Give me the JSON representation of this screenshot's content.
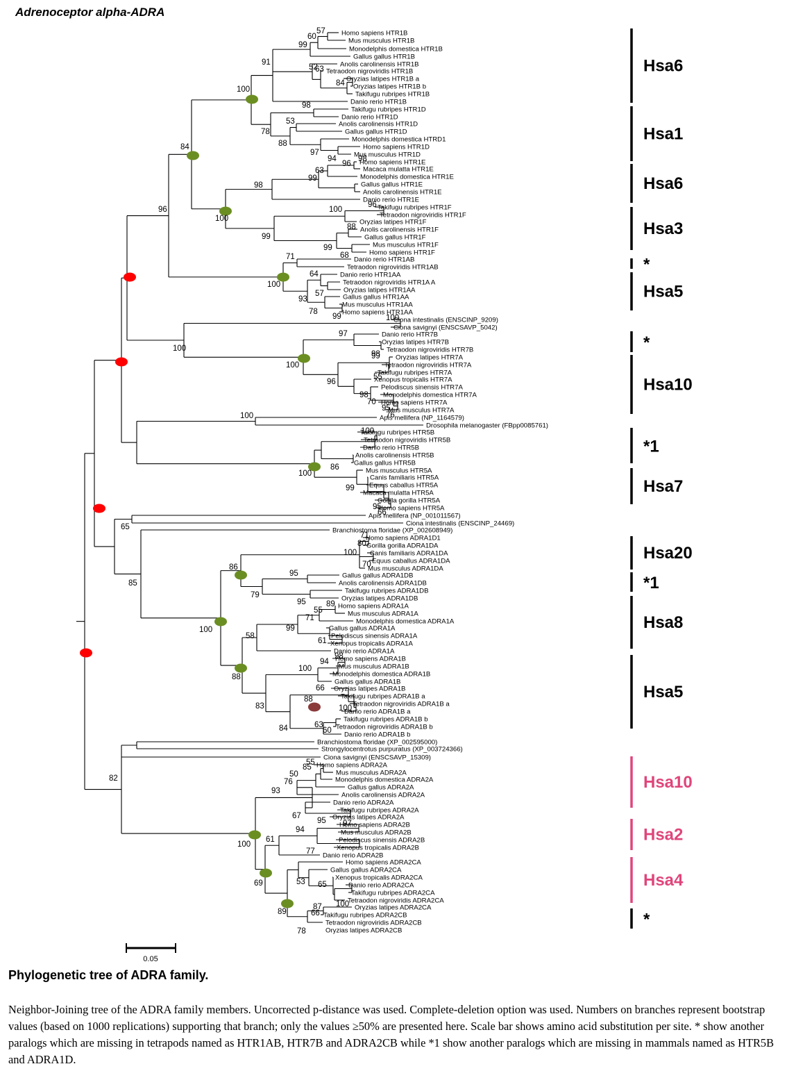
{
  "figure_title": "Adrenoceptor alpha-ADRA",
  "caption": {
    "title": "Phylogenetic tree of  ADRA family.",
    "body": "Neighbor-Joining tree of the  ADRA family members. Uncorrected p-distance was used. Complete-deletion option was used. Numbers on branches represent bootstrap values (based on 1000 replications) supporting that branch; only the values ≥50% are presented here. Scale bar shows amino acid substitution per site. * show another paralogs which are missing in tetrapods named as HTR1AB, HTR7B and ADRA2CB while *1 show another paralogs which are missing in mammals named as HTR5B and ADRA1D."
  },
  "scale_bar": {
    "label": "0.05",
    "value": 0.05
  },
  "colors": {
    "line": "#000000",
    "node_red": "#ff0000",
    "node_green": "#6b8e23",
    "node_brown": "#8b3a3a",
    "group_pink": "#e0457b",
    "group_black": "#000000"
  },
  "tips": [
    "Homo sapiens HTR1B",
    "Mus musculus HTR1B",
    "Monodelphis domestica HTR1B",
    "Gallus gallus HTR1B",
    "Anolis carolinensis HTR1B",
    "Tetraodon nigroviridis HTR1B",
    "Oryzias latipes HTR1B a",
    "Oryzias latipes HTR1B b",
    "Takifugu rubripes HTR1B",
    "Danio rerio HTR1B",
    "Takifugu rubripes HTR1D",
    "Danio rerio HTR1D",
    "Anolis carolinensis HTR1D",
    "Gallus gallus HTR1D",
    "Monodelphis domestica HTRD1",
    "Homo sapiens HTR1D",
    "Mus musculus HTR1D",
    "Homo sapiens HTR1E",
    "Macaca mulatta HTR1E",
    "Monodelphis domestica HTR1E",
    "Gallus gallus HTR1E",
    "Anolis carolinensis HTR1E",
    "Danio rerio HTR1E",
    "Takifugu rubripes HTR1F",
    "Tetraodon nigroviridis HTR1F",
    "Oryzias latipes HTR1F",
    "Anolis carolinensis HTR1F",
    "Gallus gallus HTR1F",
    "Mus musculus HTR1F",
    "Homo sapiens HTR1F",
    "Danio rerio HTR1AB",
    "Tetraodon nigroviridis HTR1AB",
    "Danio rerio HTR1AA",
    "Tetraodon nigroviridis HTR1A A",
    "Oryzias latipes HTR1AA",
    "Gallus gallus HTR1AA",
    "Mus musculus HTR1AA",
    "Homo sapiens HTR1AA",
    "Ciona intestinalis (ENSCINP_9209)",
    "Ciona savignyi (ENSCSAVP_5042)",
    "Danio rerio HTR7B",
    "Oryzias latipes HTR7B",
    "Tetraodon nigroviridis HTR7B",
    "Oryzias latipes HTR7A",
    "Tetraodon nigroviridis HTR7A",
    "Takifugu rubripes HTR7A",
    "Xenopus tropicalis HTR7A",
    "Pelodiscus sinensis HTR7A",
    "Monodelphis domestica HTR7A",
    "Homo sapiens HTR7A",
    "Mus musculus HTR7A",
    "Apis mellifera (NP_1164579)",
    "Drosophila melanogaster (FBpp0085761)",
    "Takifugu rubripes HTR5B",
    "Tetraodon nigroviridis HTR5B",
    "Danio rerio HTR5B",
    "Anolis carolinensis HTR5B",
    "Gallus gallus HTR5B",
    "Mus musculus HTR5A",
    "Canis familiaris HTR5A",
    "Equus caballus HTR5A",
    "Macaca mulatta HTR5A",
    "Gorilla gorilla HTR5A",
    "Homo sapiens HTR5A",
    "Apis mellifera (NP_001011567)",
    "Ciona intestinalis (ENSCINP_24469)",
    "Branchiostoma floridae (XP_002608949)",
    "Homo sapiens ADRA1D1",
    "Gorilla gorilla ADRA1DA",
    "Canis familiaris ADRA1DA",
    "Equus caballus ADRA1DA",
    "Mus musculus ADRA1DA",
    "Gallus gallus ADRA1DB",
    "Anolis carolinensis ADRA1DB",
    "Takifugu rubripes ADRA1DB",
    "Oryzias latipes ADRA1DB",
    "Homo sapiens ADRA1A",
    "Mus musculus ADRA1A",
    "Monodelphis domestica ADRA1A",
    "Gallus gallus ADRA1A",
    "Pelodiscus sinensis ADRA1A",
    "Xenopus tropicalis ADRA1A",
    "Danio rerio ADRA1A",
    "Homo sapiens ADRA1B",
    "Mus musculus ADRA1B",
    "Monodelphis domestica ADRA1B",
    "Gallus gallus ADRA1B",
    "Oryzias latipes ADRA1B",
    "Takifugu rubripes ADRA1B a",
    "Tetraodon nigroviridis ADRA1B a",
    "Danio rerio ADRA1B a",
    "Takifugu rubripes ADRA1B b",
    "Tetraodon nigroviridis ADRA1B b",
    "Danio rerio ADRA1B b",
    "Branchiostoma floridae (XP_002595000)",
    "Strongylocentrotus purpuratus (XP_003724366)",
    "Ciona savignyi (ENSCSAVP_15309)",
    "Homo sapiens ADRA2A",
    "Mus musculus ADRA2A",
    "Monodelphis domestica ADRA2A",
    "Gallus gallus ADRA2A",
    "Anolis carolinensis ADRA2A",
    "Danio rerio ADRA2A",
    "Takifugu rubripes ADRA2A",
    "Oryzias latipes ADRA2A",
    "Homo sapiens ADRA2B",
    "Mus musculus ADRA2B",
    "Pelodiscus sinensis ADRA2B",
    "Xenopus tropicalis ADRA2B",
    "Danio rerio ADRA2B",
    "Homo sapiens ADRA2CA",
    "Gallus gallus ADRA2CA",
    "Xenopus tropicalis ADRA2CA",
    "Danio rerio ADRA2CA",
    "Takifugu rubripes ADRA2CA",
    "Tetraodon nigroviridis ADRA2CA",
    "Oryzias latipes ADRA2CA",
    "Takifugu rubripes ADRA2CB",
    "Tetraodon nigroviridis ADRA2CB",
    "Oryzias latipes ADRA2CB"
  ],
  "bootstrap": [
    "57",
    "60",
    "99",
    "91",
    "52",
    "63",
    "84",
    "100",
    "98",
    "53",
    "78",
    "88",
    "97",
    "94",
    "84",
    "96",
    "98",
    "63",
    "99",
    "96",
    "98",
    "100",
    "100",
    "88",
    "99",
    "99",
    "96",
    "71",
    "68",
    "64",
    "100",
    "93",
    "57",
    "78",
    "99",
    "100",
    "100",
    "97",
    "99",
    "98",
    "100",
    "55",
    "96",
    "98",
    "70",
    "95",
    "76",
    "100",
    "100",
    "86",
    "100",
    "99",
    "95",
    "66",
    "65",
    "85",
    "71",
    "80",
    "100",
    "70",
    "86",
    "95",
    "79",
    "95",
    "89",
    "55",
    "71",
    "99",
    "61",
    "58",
    "100",
    "98",
    "94",
    "100",
    "88",
    "66",
    "88",
    "100",
    "63",
    "60",
    "83",
    "84",
    "82",
    "55",
    "85",
    "50",
    "76",
    "93",
    "67",
    "95",
    "97",
    "94",
    "61",
    "77",
    "100",
    "53",
    "65",
    "69",
    "87",
    "100",
    "66",
    "89",
    "78"
  ],
  "groups": [
    {
      "label": "Hsa6",
      "color": "black"
    },
    {
      "label": "Hsa1",
      "color": "black"
    },
    {
      "label": "Hsa6",
      "color": "black"
    },
    {
      "label": "Hsa3",
      "color": "black"
    },
    {
      "label": "*",
      "color": "black"
    },
    {
      "label": "Hsa5",
      "color": "black"
    },
    {
      "label": "*",
      "color": "black"
    },
    {
      "label": "Hsa10",
      "color": "black"
    },
    {
      "label": "*1",
      "color": "black"
    },
    {
      "label": "Hsa7",
      "color": "black"
    },
    {
      "label": "Hsa20",
      "color": "black"
    },
    {
      "label": "*1",
      "color": "black"
    },
    {
      "label": "Hsa8",
      "color": "black"
    },
    {
      "label": "Hsa5",
      "color": "black"
    },
    {
      "label": "Hsa10",
      "color": "pink"
    },
    {
      "label": "Hsa2",
      "color": "pink"
    },
    {
      "label": "Hsa4",
      "color": "pink"
    },
    {
      "label": "*",
      "color": "black"
    }
  ]
}
